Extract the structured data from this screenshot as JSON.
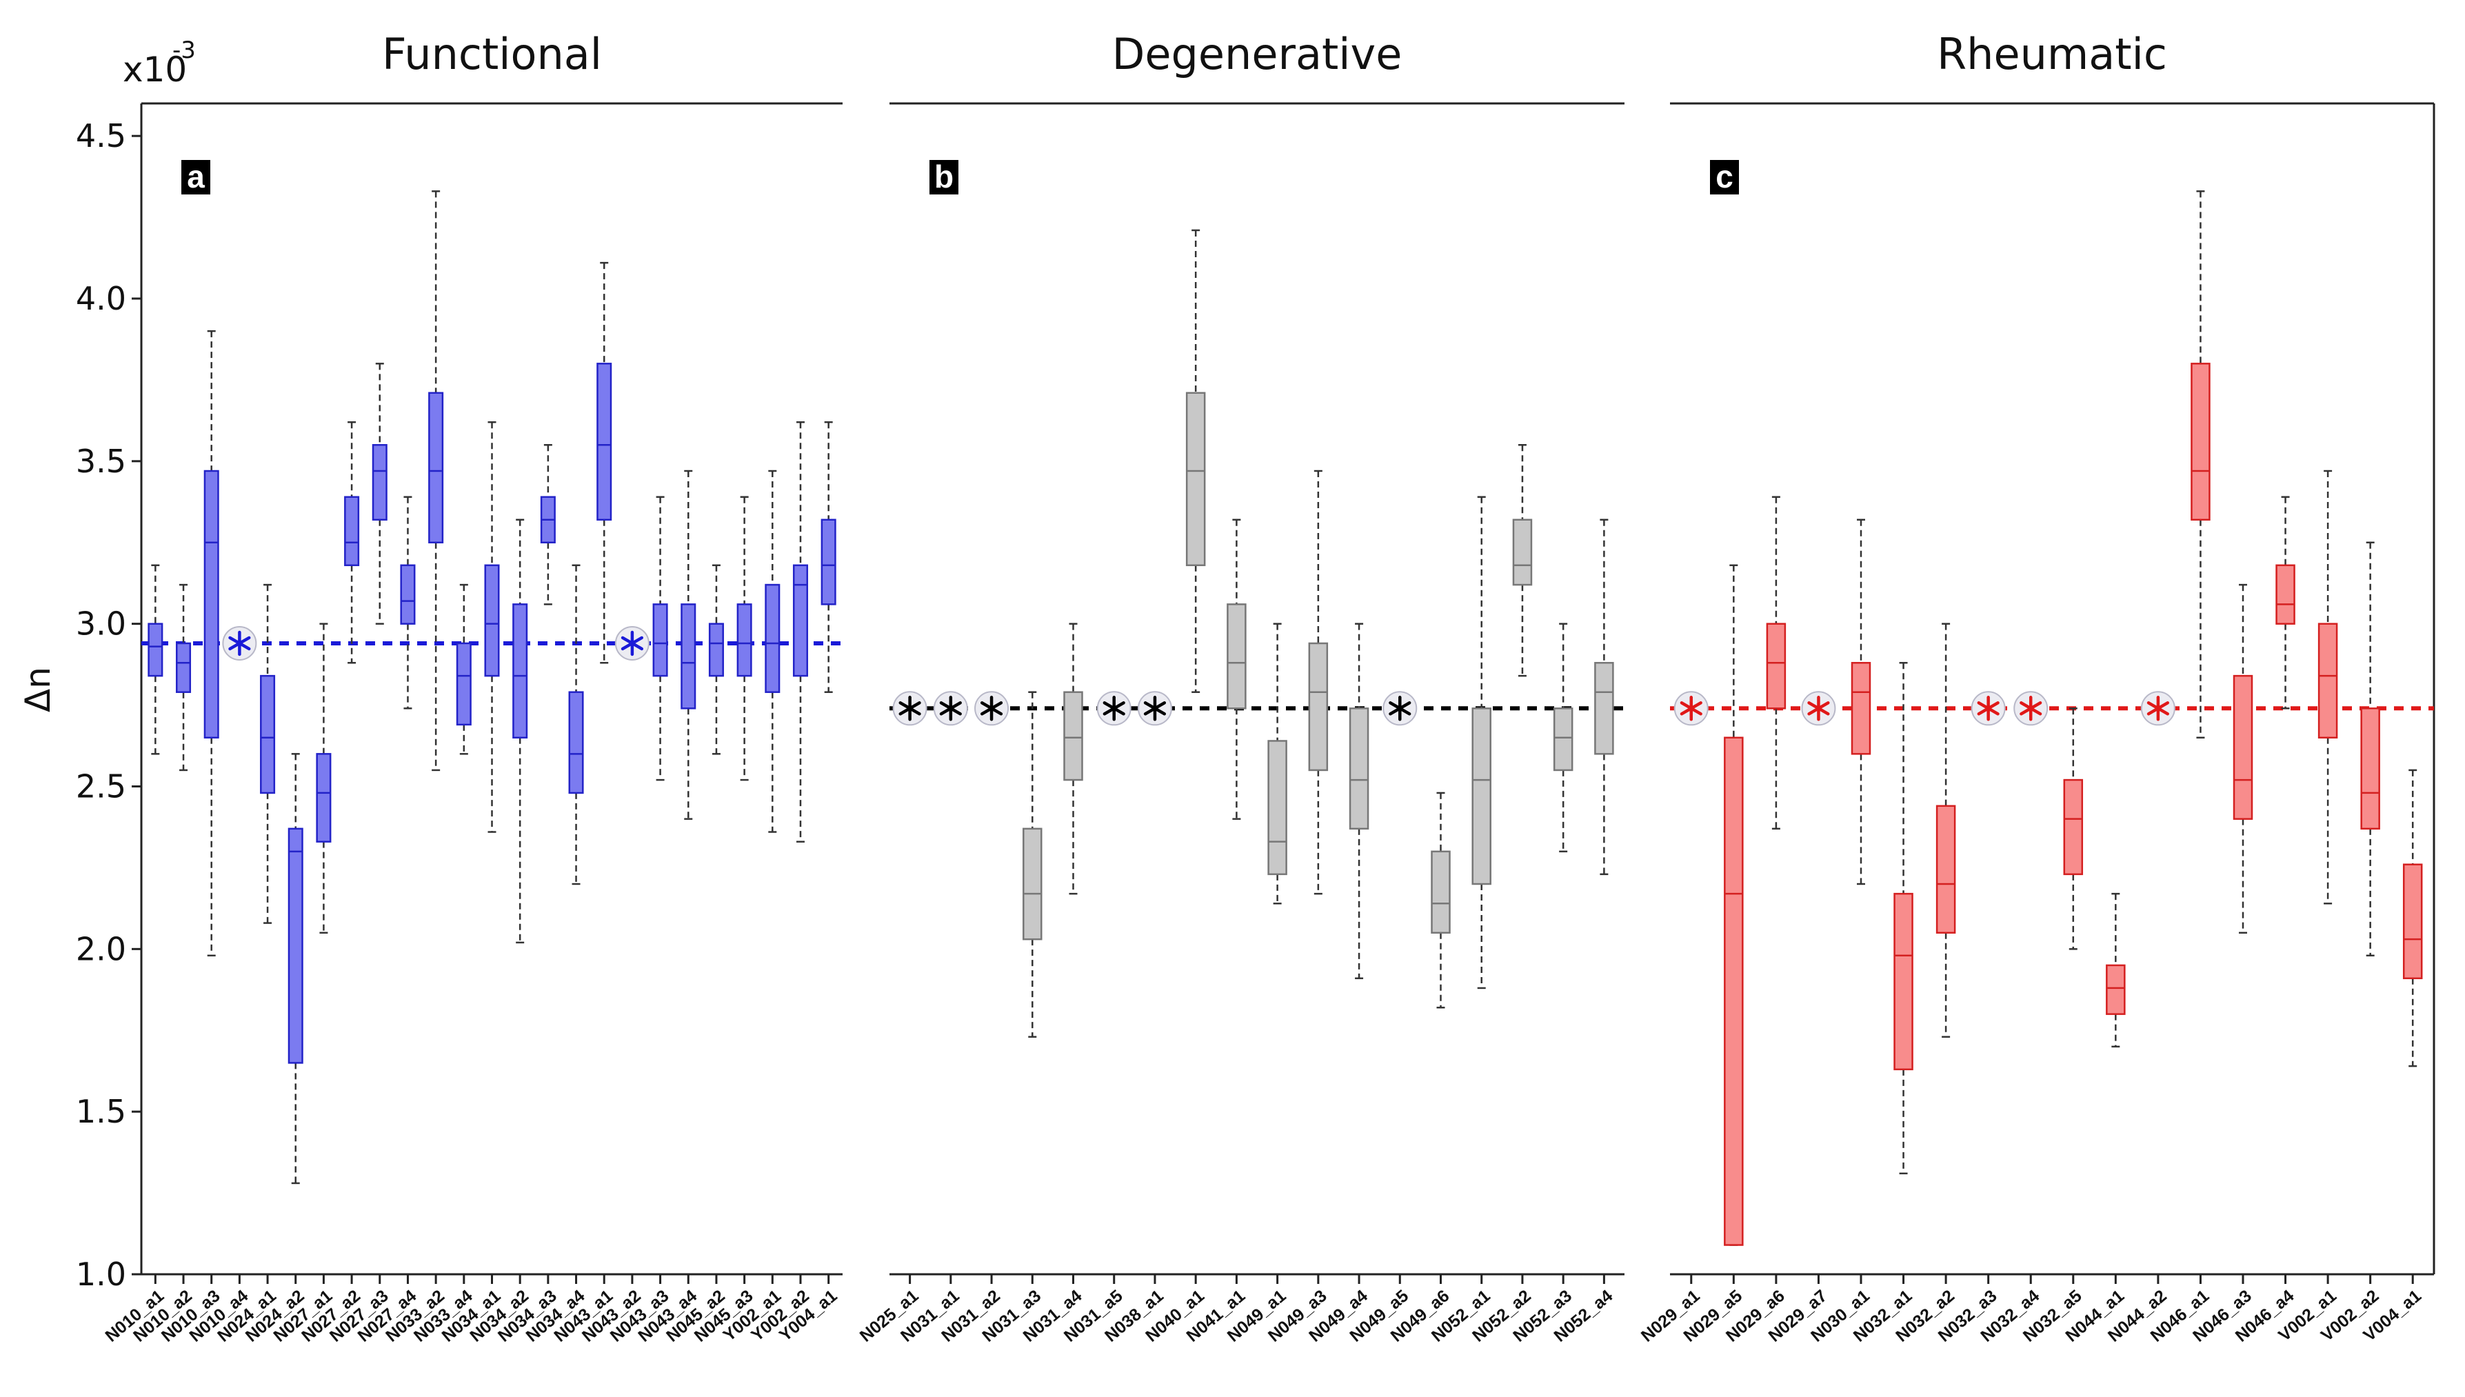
{
  "chart_data": {
    "type": "box",
    "ylabel": "Δn",
    "y_multiplier": "x10",
    "y_multiplier_exp": "-3",
    "ylim": [
      1.0,
      4.6
    ],
    "yticks": [
      "1.0",
      "1.5",
      "2.0",
      "2.5",
      "3.0",
      "3.5",
      "4.0",
      "4.5"
    ],
    "grid": false,
    "panels": [
      {
        "title": "Functional",
        "label": "a",
        "color": "#7b7bf0",
        "dark": "#2323c8",
        "whisker": "#333333",
        "ref_line": 2.94,
        "ref_color": "#1a1ad8",
        "series": [
          {
            "name": "N010_a1",
            "min": 2.6,
            "q1": 2.84,
            "median": 2.93,
            "q3": 3.0,
            "max": 3.18
          },
          {
            "name": "N010_a2",
            "min": 2.55,
            "q1": 2.79,
            "median": 2.88,
            "q3": 2.94,
            "max": 3.12
          },
          {
            "name": "N010_a3",
            "min": 1.98,
            "q1": 2.65,
            "median": 3.25,
            "q3": 3.47,
            "max": 3.9
          },
          {
            "name": "N010_a4",
            "marker": true
          },
          {
            "name": "N024_a1",
            "min": 2.08,
            "q1": 2.48,
            "median": 2.65,
            "q3": 2.84,
            "max": 3.12
          },
          {
            "name": "N024_a2",
            "min": 1.28,
            "q1": 1.65,
            "median": 2.3,
            "q3": 2.37,
            "max": 2.6
          },
          {
            "name": "N027_a1",
            "min": 2.05,
            "q1": 2.33,
            "median": 2.48,
            "q3": 2.6,
            "max": 3.0
          },
          {
            "name": "N027_a2",
            "min": 2.88,
            "q1": 3.18,
            "median": 3.25,
            "q3": 3.39,
            "max": 3.62
          },
          {
            "name": "N027_a3",
            "min": 3.0,
            "q1": 3.32,
            "median": 3.47,
            "q3": 3.55,
            "max": 3.8
          },
          {
            "name": "N027_a4",
            "min": 2.74,
            "q1": 3.0,
            "median": 3.07,
            "q3": 3.18,
            "max": 3.39
          },
          {
            "name": "N033_a2",
            "min": 2.55,
            "q1": 3.25,
            "median": 3.47,
            "q3": 3.71,
            "max": 4.33
          },
          {
            "name": "N033_a4",
            "min": 2.6,
            "q1": 2.69,
            "median": 2.84,
            "q3": 2.94,
            "max": 3.12
          },
          {
            "name": "N034_a1",
            "min": 2.36,
            "q1": 2.84,
            "median": 3.0,
            "q3": 3.18,
            "max": 3.62
          },
          {
            "name": "N034_a2",
            "min": 2.02,
            "q1": 2.65,
            "median": 2.84,
            "q3": 3.06,
            "max": 3.32
          },
          {
            "name": "N034_a3",
            "min": 3.06,
            "q1": 3.25,
            "median": 3.32,
            "q3": 3.39,
            "max": 3.55
          },
          {
            "name": "N034_a4",
            "min": 2.2,
            "q1": 2.48,
            "median": 2.6,
            "q3": 2.79,
            "max": 3.18
          },
          {
            "name": "N043_a1",
            "min": 2.88,
            "q1": 3.32,
            "median": 3.55,
            "q3": 3.8,
            "max": 4.11
          },
          {
            "name": "N043_a2",
            "marker": true
          },
          {
            "name": "N043_a3",
            "min": 2.52,
            "q1": 2.84,
            "median": 2.94,
            "q3": 3.06,
            "max": 3.39
          },
          {
            "name": "N043_a4",
            "min": 2.4,
            "q1": 2.74,
            "median": 2.88,
            "q3": 3.06,
            "max": 3.47
          },
          {
            "name": "N045_a2",
            "min": 2.6,
            "q1": 2.84,
            "median": 2.94,
            "q3": 3.0,
            "max": 3.18
          },
          {
            "name": "N045_a3",
            "min": 2.52,
            "q1": 2.84,
            "median": 2.94,
            "q3": 3.06,
            "max": 3.39
          },
          {
            "name": "Y002_a1",
            "min": 2.36,
            "q1": 2.79,
            "median": 2.94,
            "q3": 3.12,
            "max": 3.47
          },
          {
            "name": "Y002_a2",
            "min": 2.33,
            "q1": 2.84,
            "median": 3.12,
            "q3": 3.18,
            "max": 3.62
          },
          {
            "name": "Y004_a1",
            "min": 2.79,
            "q1": 3.06,
            "median": 3.18,
            "q3": 3.32,
            "max": 3.62
          }
        ]
      },
      {
        "title": "Degenerative",
        "label": "b",
        "color": "#c8c8c8",
        "dark": "#777777",
        "whisker": "#333333",
        "ref_line": 2.74,
        "ref_color": "#000000",
        "series": [
          {
            "name": "N025_a1",
            "marker": true
          },
          {
            "name": "N031_a1",
            "marker": true
          },
          {
            "name": "N031_a2",
            "marker": true
          },
          {
            "name": "N031_a3",
            "min": 1.73,
            "q1": 2.03,
            "median": 2.17,
            "q3": 2.37,
            "max": 2.79
          },
          {
            "name": "N031_a4",
            "min": 2.17,
            "q1": 2.52,
            "median": 2.65,
            "q3": 2.79,
            "max": 3.0
          },
          {
            "name": "N031_a5",
            "marker": true
          },
          {
            "name": "N038_a1",
            "marker": true
          },
          {
            "name": "N040_a1",
            "min": 2.79,
            "q1": 3.18,
            "median": 3.47,
            "q3": 3.71,
            "max": 4.21
          },
          {
            "name": "N041_a1",
            "min": 2.4,
            "q1": 2.74,
            "median": 2.88,
            "q3": 3.06,
            "max": 3.32
          },
          {
            "name": "N049_a1",
            "min": 2.14,
            "q1": 2.23,
            "median": 2.33,
            "q3": 2.64,
            "max": 3.0
          },
          {
            "name": "N049_a3",
            "min": 2.17,
            "q1": 2.55,
            "median": 2.79,
            "q3": 2.94,
            "max": 3.47
          },
          {
            "name": "N049_a4",
            "min": 1.91,
            "q1": 2.37,
            "median": 2.52,
            "q3": 2.74,
            "max": 3.0
          },
          {
            "name": "N049_a5",
            "marker": true
          },
          {
            "name": "N049_a6",
            "min": 1.82,
            "q1": 2.05,
            "median": 2.14,
            "q3": 2.3,
            "max": 2.48
          },
          {
            "name": "N052_a1",
            "min": 1.88,
            "q1": 2.2,
            "median": 2.52,
            "q3": 2.74,
            "max": 3.39
          },
          {
            "name": "N052_a2",
            "min": 2.84,
            "q1": 3.12,
            "median": 3.18,
            "q3": 3.32,
            "max": 3.55
          },
          {
            "name": "N052_a3",
            "min": 2.3,
            "q1": 2.55,
            "median": 2.65,
            "q3": 2.74,
            "max": 3.0
          },
          {
            "name": "N052_a4",
            "min": 2.23,
            "q1": 2.6,
            "median": 2.79,
            "q3": 2.88,
            "max": 3.32
          }
        ]
      },
      {
        "title": "Rheumatic",
        "label": "c",
        "color": "#f88c8c",
        "dark": "#d42020",
        "whisker": "#333333",
        "ref_line": 2.74,
        "ref_color": "#e01818",
        "series": [
          {
            "name": "N029_a1",
            "marker": true
          },
          {
            "name": "N029_a5",
            "min": 1.09,
            "q1": 1.09,
            "median": 2.17,
            "q3": 2.65,
            "max": 3.18
          },
          {
            "name": "N029_a6",
            "min": 2.37,
            "q1": 2.74,
            "median": 2.88,
            "q3": 3.0,
            "max": 3.39
          },
          {
            "name": "N029_a7",
            "marker": true
          },
          {
            "name": "N030_a1",
            "min": 2.2,
            "q1": 2.6,
            "median": 2.79,
            "q3": 2.88,
            "max": 3.32
          },
          {
            "name": "N032_a1",
            "min": 1.31,
            "q1": 1.63,
            "median": 1.98,
            "q3": 2.17,
            "max": 2.88
          },
          {
            "name": "N032_a2",
            "min": 1.73,
            "q1": 2.05,
            "median": 2.2,
            "q3": 2.44,
            "max": 3.0
          },
          {
            "name": "N032_a3",
            "marker": true
          },
          {
            "name": "N032_a4",
            "marker": true
          },
          {
            "name": "N032_a5",
            "min": 2.0,
            "q1": 2.23,
            "median": 2.4,
            "q3": 2.52,
            "max": 2.74
          },
          {
            "name": "N044_a1",
            "min": 1.7,
            "q1": 1.8,
            "median": 1.88,
            "q3": 1.95,
            "max": 2.17
          },
          {
            "name": "N044_a2",
            "marker": true
          },
          {
            "name": "N046_a1",
            "min": 2.65,
            "q1": 3.32,
            "median": 3.47,
            "q3": 3.8,
            "max": 4.33
          },
          {
            "name": "N046_a3",
            "min": 2.05,
            "q1": 2.4,
            "median": 2.52,
            "q3": 2.84,
            "max": 3.12
          },
          {
            "name": "N046_a4",
            "min": 2.74,
            "q1": 3.0,
            "median": 3.06,
            "q3": 3.18,
            "max": 3.39
          },
          {
            "name": "V002_a1",
            "min": 2.14,
            "q1": 2.65,
            "median": 2.84,
            "q3": 3.0,
            "max": 3.47
          },
          {
            "name": "V002_a2",
            "min": 1.98,
            "q1": 2.37,
            "median": 2.48,
            "q3": 2.74,
            "max": 3.25
          },
          {
            "name": "V004_a1",
            "min": 1.64,
            "q1": 1.91,
            "median": 2.03,
            "q3": 2.26,
            "max": 2.55
          }
        ]
      }
    ]
  }
}
